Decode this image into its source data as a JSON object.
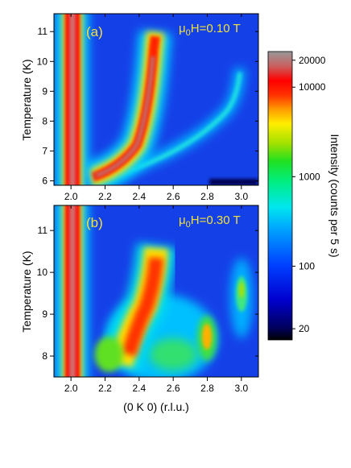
{
  "chart_data": [
    {
      "type": "heatmap",
      "panel_label": "(a)",
      "field_label": "μ0H=0.10 T",
      "field_prefix": "μ",
      "field_sub": "0",
      "field_rest": "H=0.10 T",
      "xlabel": "",
      "ylabel": "Temperature (K)",
      "xlim": [
        1.9,
        3.1
      ],
      "ylim": [
        5.85,
        11.6
      ],
      "x_ticks": [
        "2.0",
        "2.2",
        "2.4",
        "2.6",
        "2.8",
        "3.0"
      ],
      "x_tick_values": [
        2.0,
        2.2,
        2.4,
        2.6,
        2.8,
        3.0
      ],
      "y_ticks": [
        "6",
        "7",
        "8",
        "9",
        "10",
        "11"
      ],
      "y_tick_values": [
        6,
        7,
        8,
        9,
        10,
        11
      ],
      "features": [
        {
          "name": "main-rod",
          "x": 2.0,
          "y_range": [
            5.85,
            11.6
          ],
          "intensity": 16000
        },
        {
          "name": "incommensurate-peak",
          "points": [
            [
              2.22,
              6.05
            ],
            [
              2.32,
              6.4
            ],
            [
              2.4,
              7.0
            ],
            [
              2.45,
              8.0
            ],
            [
              2.49,
              9.0
            ],
            [
              2.52,
              10.0
            ],
            [
              2.53,
              11.1
            ]
          ],
          "intensity": 12000
        },
        {
          "name": "weak-branch",
          "points": [
            [
              2.3,
              6.15
            ],
            [
              2.5,
              6.5
            ],
            [
              2.7,
              7.0
            ],
            [
              2.85,
              7.6
            ],
            [
              2.95,
              8.3
            ],
            [
              3.0,
              9.0
            ],
            [
              3.02,
              9.8
            ]
          ],
          "intensity": 400
        }
      ]
    },
    {
      "type": "heatmap",
      "panel_label": "(b)",
      "field_label": "μ0H=0.30 T",
      "field_prefix": "μ",
      "field_sub": "0",
      "field_rest": "H=0.30 T",
      "xlabel": "(0 K 0) (r.l.u.)",
      "ylabel": "Temperature (K)",
      "xlim": [
        1.9,
        3.1
      ],
      "ylim": [
        7.5,
        11.6
      ],
      "x_ticks": [
        "2.0",
        "2.2",
        "2.4",
        "2.6",
        "2.8",
        "3.0"
      ],
      "x_tick_values": [
        2.0,
        2.2,
        2.4,
        2.6,
        2.8,
        3.0
      ],
      "y_ticks": [
        "8",
        "9",
        "10",
        "11"
      ],
      "y_tick_values": [
        8,
        9,
        10,
        11
      ],
      "features": [
        {
          "name": "main-rod",
          "x": 2.0,
          "y_range": [
            7.5,
            11.6
          ],
          "intensity": 16000
        },
        {
          "name": "incommensurate-peak",
          "x": 2.47,
          "y_range": [
            7.6,
            10.6
          ],
          "intensity": 8000
        },
        {
          "name": "peak-2.8",
          "x": 2.8,
          "y_range": [
            8.0,
            8.8
          ],
          "intensity": 2000
        },
        {
          "name": "peak-3.0",
          "x": 3.0,
          "y_range": [
            8.9,
            10.2
          ],
          "intensity": 1500
        }
      ]
    }
  ],
  "colorbar": {
    "label": "Intensity (counts per 5 s)",
    "scale": "log",
    "range": [
      15,
      25000
    ],
    "tick_labels": [
      "20000",
      "10000",
      "1000",
      "100",
      "20"
    ],
    "tick_values": [
      20000,
      10000,
      1000,
      100,
      20
    ]
  }
}
